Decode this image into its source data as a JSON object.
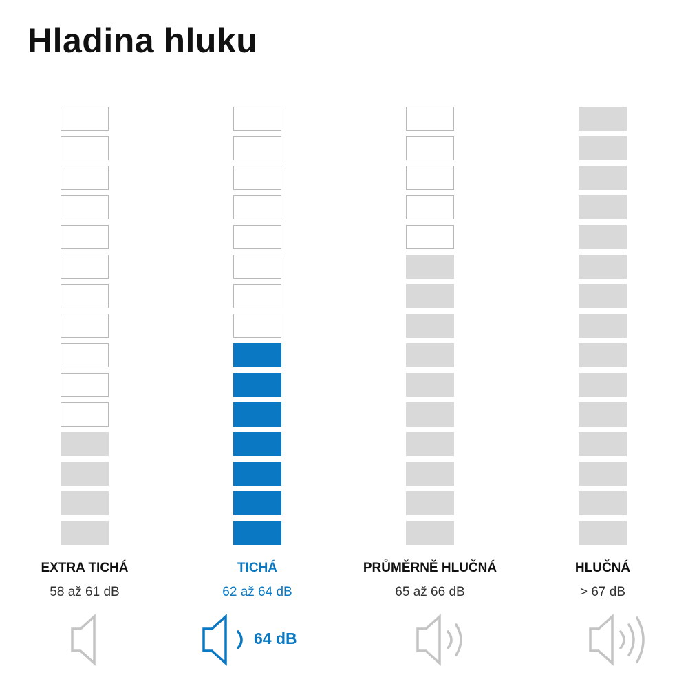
{
  "title": "Hladina hluku",
  "total_segments": 15,
  "colors": {
    "active": "#0a78c2",
    "filled": "#d9d9d9",
    "empty_border": "#b8b8b8"
  },
  "columns": [
    {
      "name": "EXTRA TICHÁ",
      "range": "58 až 61 dB",
      "filled_segments": 4,
      "active": false,
      "sound_waves": 0,
      "icon": "speaker-icon"
    },
    {
      "name": "TICHÁ",
      "range": "62 až 64 dB",
      "filled_segments": 7,
      "active": true,
      "sound_waves": 1,
      "icon": "speaker-icon",
      "value": "64 dB"
    },
    {
      "name": "PRŮMĚRNĚ HLUČNÁ",
      "range": "65 až 66 dB",
      "filled_segments": 10,
      "active": false,
      "sound_waves": 2,
      "icon": "speaker-icon"
    },
    {
      "name": "HLUČNÁ",
      "range": "> 67 dB",
      "filled_segments": 15,
      "active": false,
      "sound_waves": 3,
      "icon": "speaker-icon"
    }
  ]
}
